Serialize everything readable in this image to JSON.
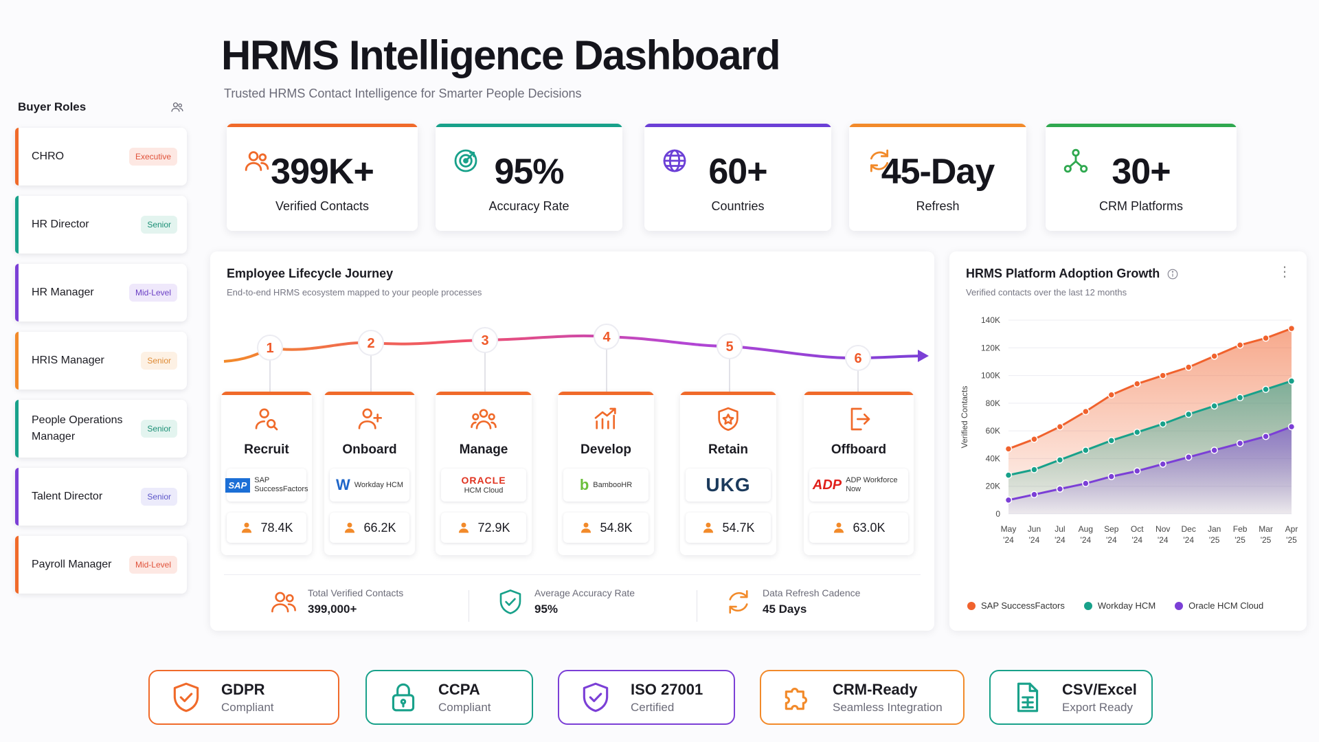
{
  "header": {
    "title": "HRMS Intelligence Dashboard",
    "subtitle": "Trusted HRMS Contact Intelligence for Smarter People Decisions"
  },
  "sidebar": {
    "title": "Buyer Roles",
    "icon": "users-icon",
    "items": [
      {
        "label": "CHRO",
        "badge": "Executive",
        "color": "#f06a2a",
        "badge_bg": "#fde8e3",
        "badge_fg": "#e0523a"
      },
      {
        "label": "HR Director",
        "badge": "Senior",
        "color": "#18a18a",
        "badge_bg": "#e3f4ef",
        "badge_fg": "#1b8f75"
      },
      {
        "label": "HR Manager",
        "badge": "Mid-Level",
        "color": "#7b3fd6",
        "badge_bg": "#efe8fb",
        "badge_fg": "#6b3fc4"
      },
      {
        "label": "HRIS Manager",
        "badge": "Senior",
        "color": "#f28a2a",
        "badge_bg": "#fdf1e4",
        "badge_fg": "#de8a34"
      },
      {
        "label": "People Operations Manager",
        "badge": "Senior",
        "color": "#18a18a",
        "badge_bg": "#e3f4ef",
        "badge_fg": "#1b8f75"
      },
      {
        "label": "Talent Director",
        "badge": "Senior",
        "color": "#7b3fd6",
        "badge_bg": "#ecebfb",
        "badge_fg": "#5b54c9"
      },
      {
        "label": "Payroll Manager",
        "badge": "Mid-Level",
        "color": "#f06a2a",
        "badge_bg": "#fde8e3",
        "badge_fg": "#e0523a"
      }
    ]
  },
  "kpis": [
    {
      "value": "399K+",
      "label": "Verified Contacts",
      "icon": "users-icon",
      "color": "#f06a2a"
    },
    {
      "value": "95%",
      "label": "Accuracy Rate",
      "icon": "target-icon",
      "color": "#18a18a"
    },
    {
      "value": "60+",
      "label": "Countries",
      "icon": "globe-icon",
      "color": "#6b3fd6"
    },
    {
      "value": "45-Day",
      "label": "Refresh",
      "icon": "refresh-icon",
      "color": "#f28a2a"
    },
    {
      "value": "30+",
      "label": "CRM Platforms",
      "icon": "network-icon",
      "color": "#2fa84f"
    }
  ],
  "lifecycle": {
    "title": "Employee Lifecycle Journey",
    "subtitle": "End-to-end HRMS ecosystem mapped to your people processes",
    "stages": [
      {
        "step": "1",
        "name": "Recruit",
        "icon": "search-user-icon",
        "vendor": "SAP SuccessFactors",
        "vendor_logo": "SAP",
        "count": "78.4K"
      },
      {
        "step": "2",
        "name": "Onboard",
        "icon": "add-user-icon",
        "vendor": "Workday HCM",
        "vendor_logo": "W",
        "count": "66.2K"
      },
      {
        "step": "3",
        "name": "Manage",
        "icon": "team-icon",
        "vendor": "HCM Cloud",
        "vendor_logo": "ORACLE",
        "count": "72.9K"
      },
      {
        "step": "4",
        "name": "Develop",
        "icon": "growth-chart-icon",
        "vendor": "BambooHR",
        "vendor_logo": "b",
        "count": "54.8K"
      },
      {
        "step": "5",
        "name": "Retain",
        "icon": "shield-star-icon",
        "vendor": "",
        "vendor_logo": "UKG",
        "count": "54.7K"
      },
      {
        "step": "6",
        "name": "Offboard",
        "icon": "exit-icon",
        "vendor": "ADP Workforce Now",
        "vendor_logo": "ADP",
        "count": "63.0K"
      }
    ],
    "footer": [
      {
        "label": "Total Verified Contacts",
        "value": "399,000+",
        "icon": "users-icon"
      },
      {
        "label": "Average Accuracy Rate",
        "value": "95%",
        "icon": "shield-check-icon"
      },
      {
        "label": "Data Refresh Cadence",
        "value": "45 Days",
        "icon": "refresh-icon"
      }
    ]
  },
  "chart": {
    "title": "HRMS Platform Adoption Growth",
    "subtitle": "Verified contacts over the last 12 months",
    "info_icon": "info-icon",
    "menu_icon": "kebab-menu-icon"
  },
  "chart_data": {
    "type": "area",
    "categories": [
      "May '24",
      "Jun '24",
      "Jul '24",
      "Aug '24",
      "Sep '24",
      "Oct '24",
      "Nov '24",
      "Dec '24",
      "Jan '25",
      "Feb '25",
      "Mar '25",
      "Apr '25"
    ],
    "ylabel": "Verified Contacts",
    "ylim": [
      0,
      140000
    ],
    "yticks": [
      "0",
      "20K",
      "40K",
      "60K",
      "80K",
      "100K",
      "120K",
      "140K"
    ],
    "grid": true,
    "legend": "bottom",
    "series": [
      {
        "name": "SAP SuccessFactors",
        "color": "#f0622d",
        "values": [
          47000,
          54000,
          63000,
          74000,
          86000,
          94000,
          100000,
          106000,
          114000,
          122000,
          127000,
          134000
        ]
      },
      {
        "name": "Workday HCM",
        "color": "#18a18a",
        "values": [
          28000,
          32000,
          39000,
          46000,
          53000,
          59000,
          65000,
          72000,
          78000,
          84000,
          90000,
          96000
        ]
      },
      {
        "name": "Oracle HCM Cloud",
        "color": "#7b3fd6",
        "values": [
          10000,
          14000,
          18000,
          22000,
          27000,
          31000,
          36000,
          41000,
          46000,
          51000,
          56000,
          63000
        ]
      }
    ]
  },
  "compliance": [
    {
      "title": "GDPR",
      "sub": "Compliant",
      "icon": "shield-check-icon",
      "color": "#f06a2a"
    },
    {
      "title": "CCPA",
      "sub": "Compliant",
      "icon": "lock-icon",
      "color": "#18a18a"
    },
    {
      "title": "ISO 27001",
      "sub": "Certified",
      "icon": "shield-check-icon",
      "color": "#7b3fd6"
    },
    {
      "title": "CRM-Ready",
      "sub": "Seamless Integration",
      "icon": "puzzle-icon",
      "color": "#f28a2a"
    },
    {
      "title": "CSV/Excel",
      "sub": "Export Ready",
      "icon": "file-icon",
      "color": "#18a18a"
    }
  ]
}
